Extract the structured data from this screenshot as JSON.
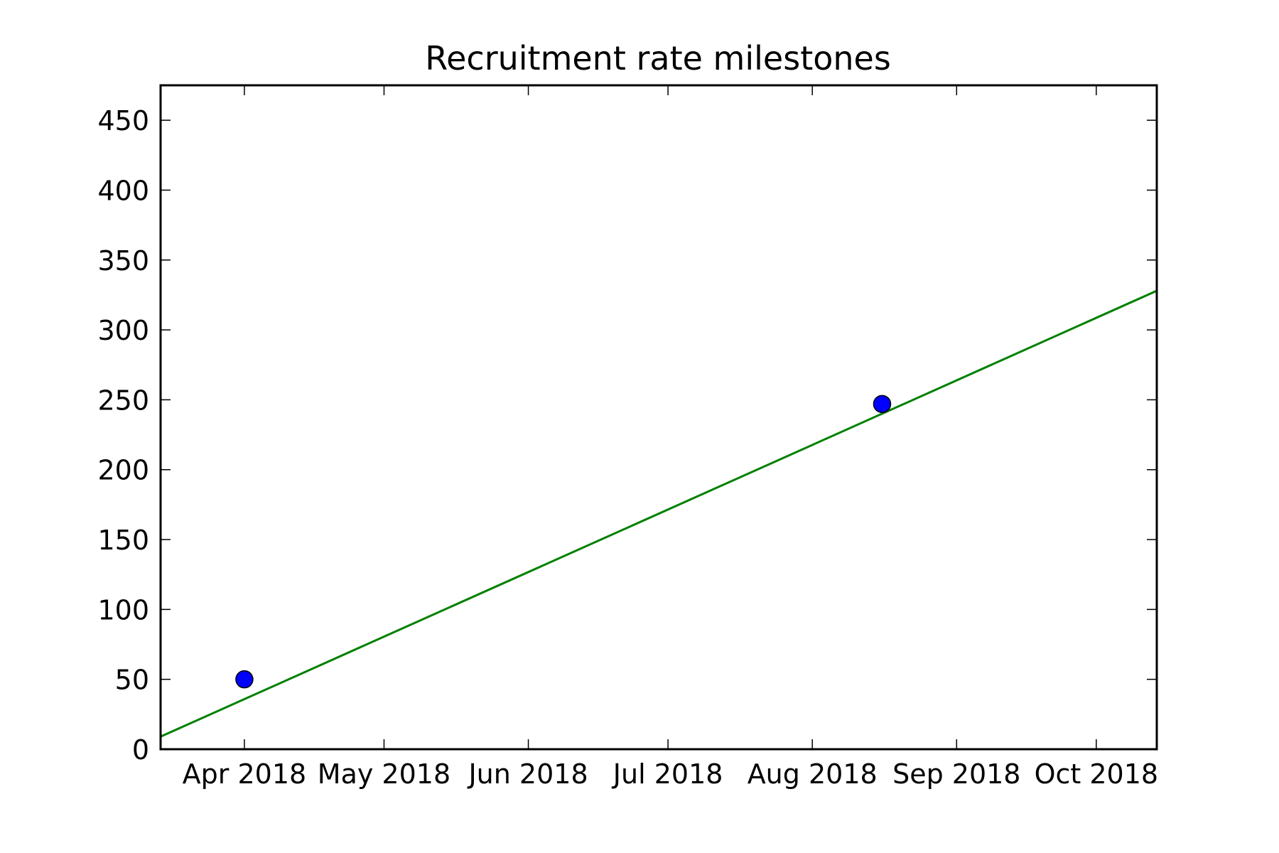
{
  "chart_data": {
    "type": "scatter",
    "title": "Recruitment rate milestones",
    "xlabel": "",
    "ylabel": "",
    "x_axis_type": "date",
    "xlim": [
      "2018-03-14",
      "2018-10-14"
    ],
    "ylim": [
      0,
      475
    ],
    "x_ticks": [
      {
        "date": "2018-04-01",
        "label": "Apr 2018"
      },
      {
        "date": "2018-05-01",
        "label": "May 2018"
      },
      {
        "date": "2018-06-01",
        "label": "Jun 2018"
      },
      {
        "date": "2018-07-01",
        "label": "Jul 2018"
      },
      {
        "date": "2018-08-01",
        "label": "Aug 2018"
      },
      {
        "date": "2018-09-01",
        "label": "Sep 2018"
      },
      {
        "date": "2018-10-01",
        "label": "Oct 2018"
      }
    ],
    "y_ticks": [
      {
        "value": 0,
        "label": "0"
      },
      {
        "value": 50,
        "label": "50"
      },
      {
        "value": 100,
        "label": "100"
      },
      {
        "value": 150,
        "label": "150"
      },
      {
        "value": 200,
        "label": "200"
      },
      {
        "value": 250,
        "label": "250"
      },
      {
        "value": 300,
        "label": "300"
      },
      {
        "value": 350,
        "label": "350"
      },
      {
        "value": 400,
        "label": "400"
      },
      {
        "value": 450,
        "label": "450"
      }
    ],
    "grid": false,
    "legend": "none",
    "series": [
      {
        "type": "scatter",
        "color": "#0000ff",
        "points": [
          {
            "x": "2018-04-01",
            "y": 50
          },
          {
            "x": "2018-08-16",
            "y": 247
          }
        ]
      },
      {
        "type": "line",
        "color": "#008000",
        "points": [
          {
            "x": "2018-03-14",
            "y": 9
          },
          {
            "x": "2018-10-14",
            "y": 328
          }
        ]
      }
    ]
  }
}
